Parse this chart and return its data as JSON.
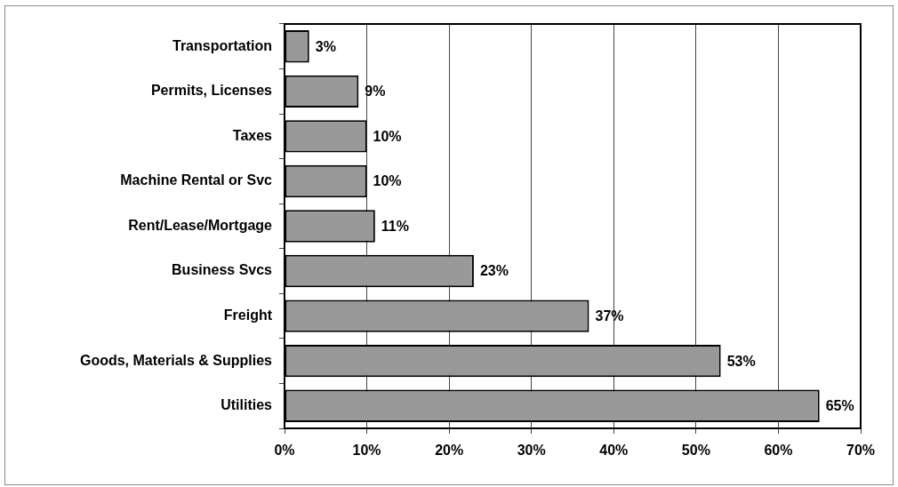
{
  "chart_data": {
    "type": "bar",
    "orientation": "horizontal",
    "categories": [
      "Transportation",
      "Permits, Licenses",
      "Taxes",
      "Machine Rental or Svc",
      "Rent/Lease/Mortgage",
      "Business Svcs",
      "Freight",
      "Goods, Materials & Supplies",
      "Utilities"
    ],
    "values": [
      3,
      9,
      10,
      10,
      11,
      23,
      37,
      53,
      65
    ],
    "value_labels": [
      "3%",
      "9%",
      "10%",
      "10%",
      "11%",
      "23%",
      "37%",
      "53%",
      "65%"
    ],
    "color": "#999999",
    "xlim": [
      0,
      70
    ],
    "xticks": [
      {
        "value": 0,
        "label": "0%"
      },
      {
        "value": 10,
        "label": "10%"
      },
      {
        "value": 20,
        "label": "20%"
      },
      {
        "value": 30,
        "label": "30%"
      },
      {
        "value": 40,
        "label": "40%"
      },
      {
        "value": 50,
        "label": "50%"
      },
      {
        "value": 60,
        "label": "60%"
      },
      {
        "value": 70,
        "label": "70%"
      }
    ],
    "grid": "x"
  }
}
